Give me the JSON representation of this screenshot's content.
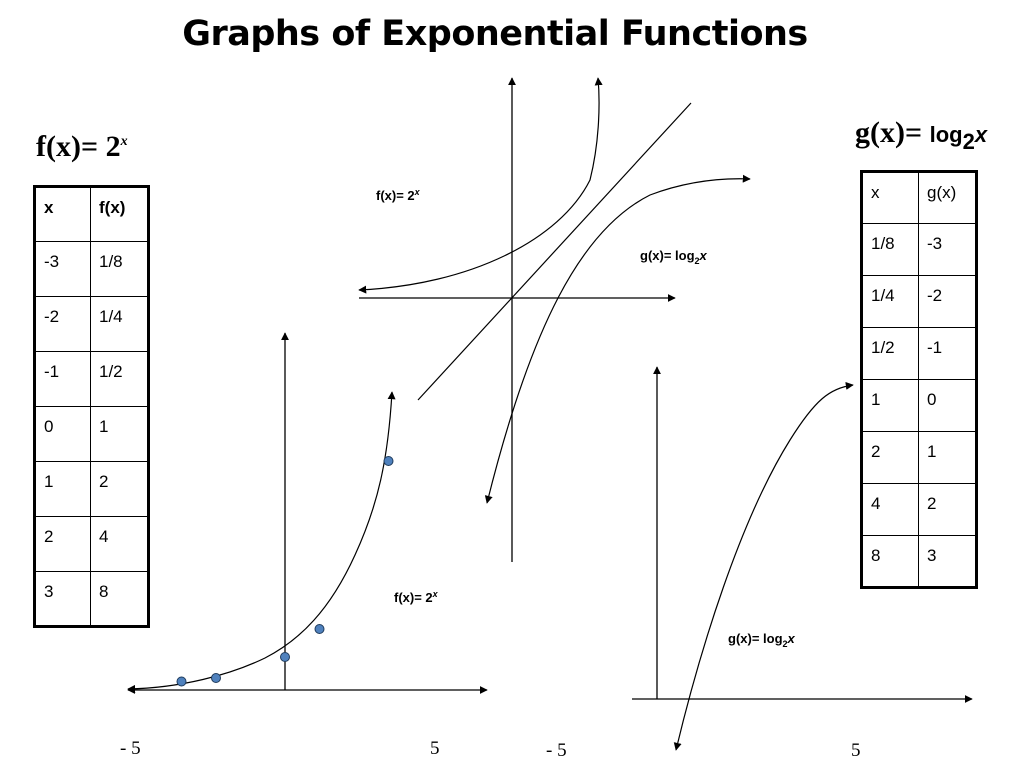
{
  "title": "Graphs of Exponential Functions",
  "f_heading": {
    "prefix": "f(x)= 2",
    "exponent": "x"
  },
  "g_heading": {
    "prefix": "g(x)= ",
    "log": "log",
    "base": "2",
    "arg": "x"
  },
  "f_table": {
    "headers": [
      "x",
      "f(x)"
    ],
    "rows": [
      [
        "-3",
        "1/8"
      ],
      [
        "-2",
        "1/4"
      ],
      [
        "-1",
        "1/2"
      ],
      [
        "0",
        "1"
      ],
      [
        "1",
        "2"
      ],
      [
        "2",
        "4"
      ],
      [
        "3",
        "8"
      ]
    ]
  },
  "g_table": {
    "headers": [
      "x",
      "g(x)"
    ],
    "rows": [
      [
        "1/8",
        "-3"
      ],
      [
        "1/4",
        "-2"
      ],
      [
        "1/2",
        "-1"
      ],
      [
        "1",
        "0"
      ],
      [
        "2",
        "1"
      ],
      [
        "4",
        "2"
      ],
      [
        "8",
        "3"
      ]
    ]
  },
  "labels": {
    "top_f": {
      "prefix": "f(x)= 2",
      "exp": "x"
    },
    "top_g": {
      "prefix": "g(x)= log",
      "base": "2",
      "arg": "x"
    },
    "bottom_f": {
      "prefix": "f(x)= 2",
      "exp": "x"
    },
    "bottom_g": {
      "prefix": "g(x)= log",
      "base": "2",
      "arg": "x"
    }
  },
  "ticks": {
    "f_left": "- 5",
    "f_right": "5",
    "g_left": "- 5",
    "g_right": "5"
  },
  "f_points": [
    {
      "x": -3,
      "y": 0.125
    },
    {
      "x": -2,
      "y": 0.25
    },
    {
      "x": 0,
      "y": 1
    },
    {
      "x": 1,
      "y": 2
    },
    {
      "x": 3,
      "y": 8
    }
  ],
  "colors": {
    "point_fill": "#4f81bd",
    "point_stroke": "#1f3b5c",
    "line": "#000000"
  }
}
